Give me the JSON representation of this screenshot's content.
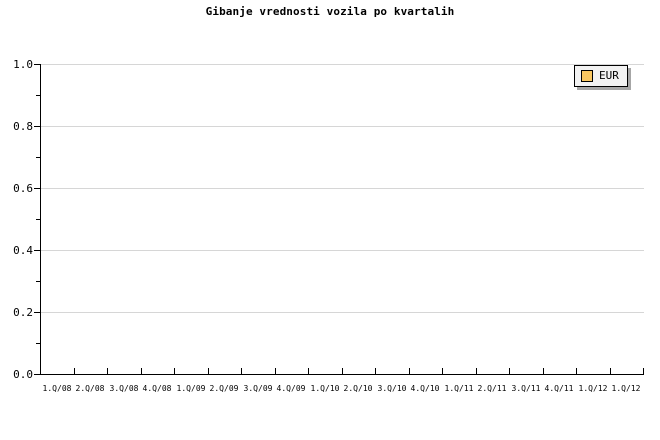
{
  "title": "Gibanje vrednosti vozila po kvartalih",
  "legend": {
    "label": "EUR",
    "swatch_color": "#fac862"
  },
  "colors": {
    "background": "#ffffff",
    "axis": "#000000",
    "grid": "#d6d6d6",
    "legend_background": "#f2f2f2",
    "legend_shadow": "#a6a6a6",
    "series_eur": "#fac862",
    "text": "#000000"
  },
  "chart_data": {
    "type": "line",
    "title": "Gibanje vrednosti vozila po kvartalih",
    "categories": [
      "1.Q/08",
      "2.Q/08",
      "3.Q/08",
      "4.Q/08",
      "1.Q/09",
      "2.Q/09",
      "3.Q/09",
      "4.Q/09",
      "1.Q/10",
      "2.Q/10",
      "3.Q/10",
      "4.Q/10",
      "1.Q/11",
      "2.Q/11",
      "3.Q/11",
      "4.Q/11",
      "1.Q/12",
      "1.Q/12"
    ],
    "series": [
      {
        "name": "EUR",
        "color": "#fac862",
        "values": []
      }
    ],
    "xlabel": "",
    "ylabel": "",
    "ylim": [
      0.0,
      1.0
    ],
    "yticks": [
      0.0,
      0.2,
      0.4,
      0.6,
      0.8,
      1.0
    ],
    "ytick_labels": [
      "0.0",
      "0.2",
      "0.4",
      "0.6",
      "0.8",
      "1.0"
    ],
    "yminor_step": 0.1,
    "grid": "horizontal-major-only",
    "legend_position": "top-right",
    "plot_is_empty": true
  }
}
